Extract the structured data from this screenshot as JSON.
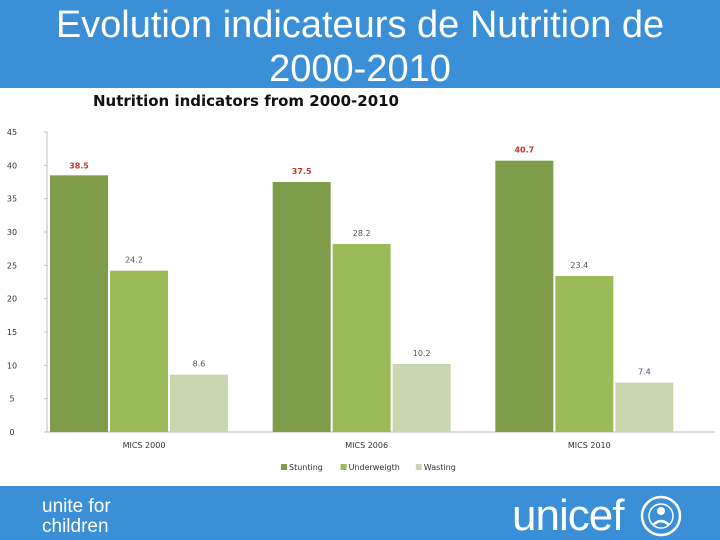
{
  "slide": {
    "title_line1": "Evolution indicateurs de Nutrition de",
    "title_line2": "2000-2010"
  },
  "footer": {
    "tagline_line1": "unite for",
    "tagline_line2": "children",
    "brand": "unicef"
  },
  "colors": {
    "header_bg": "#3a8fd6",
    "footer_bg": "#3a8fd6",
    "stunting": "#7e9c4a",
    "underweight": "#9bbb59",
    "wasting": "#c9d7b0",
    "label_red": "#c0392b",
    "label_gray": "#555555"
  },
  "chart_data": {
    "type": "bar",
    "title": "Nutrition indicators from 2000-2010",
    "categories": [
      "MICS 2000",
      "MICS 2006",
      "MICS 2010"
    ],
    "series": [
      {
        "name": "Stunting",
        "values": [
          38.5,
          37.5,
          40.7
        ],
        "labels": [
          "38.5",
          "37.5",
          "40.7"
        ]
      },
      {
        "name": "Underweigth",
        "values": [
          24.2,
          28.2,
          23.4
        ],
        "labels": [
          "24.2",
          "28.2",
          "23.4"
        ]
      },
      {
        "name": "Wasting",
        "values": [
          8.6,
          10.2,
          7.4
        ],
        "labels": [
          "8.6",
          "10.2",
          "7.4"
        ]
      }
    ],
    "y_ticks": [
      "0",
      "5",
      "10",
      "15",
      "20",
      "25",
      "30",
      "35",
      "40",
      "45"
    ],
    "ylim": [
      0,
      45
    ],
    "grid": false,
    "legend": "bottom"
  }
}
